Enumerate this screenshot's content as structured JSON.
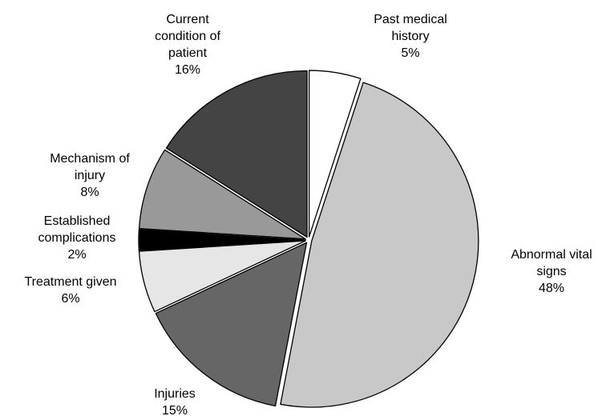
{
  "chart_data": {
    "type": "pie",
    "categories": [
      "Past medical history",
      "Abnormal vital signs",
      "Injuries",
      "Treatment given",
      "Established complications",
      "Mechanism of injury",
      "Current condition of patient"
    ],
    "values": [
      5,
      48,
      15,
      6,
      2,
      8,
      16
    ],
    "value_labels": [
      "5%",
      "48%",
      "15%",
      "6%",
      "2%",
      "8%",
      "16%"
    ],
    "colors": [
      "#ffffff",
      "#c8c8c8",
      "#666666",
      "#e6e6e6",
      "#000000",
      "#999999",
      "#444444"
    ]
  }
}
